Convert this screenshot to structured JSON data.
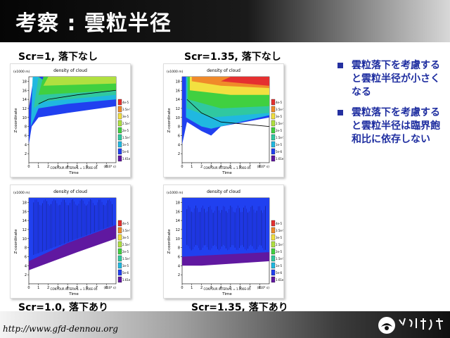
{
  "slide": {
    "title": "考察 : 雲粒半径",
    "url": "http://www.gfd-dennou.org"
  },
  "captions": {
    "top_left": "Scr=1, 落下なし",
    "top_right": "Scr=1.35, 落下なし",
    "bottom_left": "Scr=1.0, 落下あり",
    "bottom_right": "Scr=1.35, 落下あり"
  },
  "bullets": [
    "雲粒落下を考慮すると雲粒半径が小さくなる",
    "雲粒落下を考慮すると雲粒半径は臨界飽和比に依存しない"
  ],
  "chart_common": {
    "title": "density of cloud",
    "xlabel": "Time",
    "ylabel": "Z-coordinate",
    "yunit": "(x1000 m)",
    "xunit": "(x10⁴ s)",
    "contour_interval": "CONTOUR INTERVAL = 1.000E-05",
    "xticks": [
      "0",
      "1",
      "2",
      "3",
      "4",
      "5",
      "6",
      "7",
      "8"
    ],
    "yticks": [
      "2",
      "4",
      "6",
      "8",
      "10",
      "12",
      "14",
      "16",
      "18"
    ],
    "legend": [
      "4e-5",
      "3.5e-5",
      "3e-5",
      "2.5e-5",
      "2e-5",
      "1.5e-5",
      "1e-5",
      "5e-6",
      "1.61e-7"
    ],
    "colors": [
      "#e53030",
      "#f08a2a",
      "#f2e040",
      "#b0e040",
      "#40d040",
      "#30c8a0",
      "#20b8e0",
      "#2040f0",
      "#6018a0"
    ]
  },
  "chart_data": [
    {
      "type": "heatmap",
      "title": "density of cloud",
      "xlabel": "Time",
      "ylabel": "Z-coordinate",
      "xlim": [
        0,
        9
      ],
      "ylim": [
        0,
        19
      ],
      "case": "Scr=1, 落下なし"
    },
    {
      "type": "heatmap",
      "title": "density of cloud",
      "xlabel": "Time",
      "ylabel": "Z-coordinate",
      "xlim": [
        0,
        9
      ],
      "ylim": [
        0,
        19
      ],
      "case": "Scr=1.35, 落下なし"
    },
    {
      "type": "heatmap",
      "title": "density of cloud",
      "xlabel": "Time",
      "ylabel": "Z-coordinate",
      "xlim": [
        0,
        9
      ],
      "ylim": [
        0,
        19
      ],
      "case": "Scr=1.0, 落下あり"
    },
    {
      "type": "heatmap",
      "title": "density of cloud",
      "xlabel": "Time",
      "ylabel": "Z-coordinate",
      "xlim": [
        0,
        9
      ],
      "ylim": [
        0,
        19
      ],
      "case": "Scr=1.35, 落下あり"
    }
  ]
}
